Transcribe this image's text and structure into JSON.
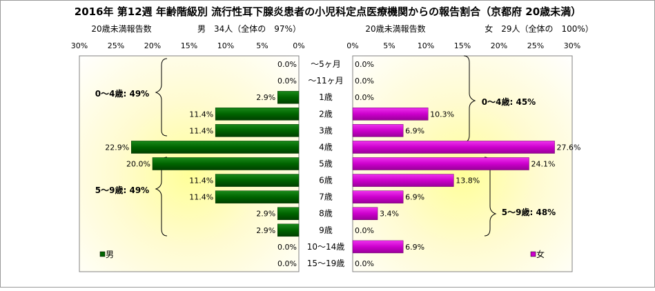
{
  "chart_data": {
    "type": "bar",
    "title": "2016年 第12週 年齢階級別 流行性耳下腺炎患者の小児科定点医療機関からの報告割合（京都府 20歳未満）",
    "left_subtitle": "20歳未満報告数",
    "left_count": "男　34人（全体の　97%）",
    "right_subtitle": "20歳未満報告数",
    "right_count": "女　29人（全体の　100%）",
    "xlim": [
      0,
      30
    ],
    "left_ticks": [
      "30%",
      "25%",
      "20%",
      "15%",
      "10%",
      "5%",
      "0%"
    ],
    "right_ticks": [
      "0%",
      "5%",
      "10%",
      "15%",
      "20%",
      "25%",
      "30%"
    ],
    "categories": [
      "〜5ヶ月",
      "〜11ヶ月",
      "1歳",
      "2歳",
      "3歳",
      "4歳",
      "5歳",
      "6歳",
      "7歳",
      "8歳",
      "9歳",
      "10〜14歳",
      "15〜19歳"
    ],
    "series": [
      {
        "name": "男",
        "color": "#006400",
        "values": [
          0.0,
          0.0,
          2.9,
          11.4,
          11.4,
          22.9,
          20.0,
          11.4,
          11.4,
          2.9,
          2.9,
          0.0,
          0.0
        ],
        "labels": [
          "0.0%",
          "0.0%",
          "2.9%",
          "11.4%",
          "11.4%",
          "22.9%",
          "20.0%",
          "11.4%",
          "11.4%",
          "2.9%",
          "2.9%",
          "0.0%",
          "0.0%"
        ]
      },
      {
        "name": "女",
        "color": "#cc00cc",
        "values": [
          0.0,
          0.0,
          0.0,
          10.3,
          6.9,
          27.6,
          24.1,
          13.8,
          6.9,
          3.4,
          0.0,
          6.9,
          0.0
        ],
        "labels": [
          "0.0%",
          "0.0%",
          "0.0%",
          "10.3%",
          "6.9%",
          "27.6%",
          "24.1%",
          "13.8%",
          "6.9%",
          "3.4%",
          "0.0%",
          "6.9%",
          "0.0%"
        ]
      }
    ],
    "annotations": {
      "male_0_4": "0〜4歳: 49%",
      "male_5_9": "5〜9歳: 49%",
      "female_0_4": "0〜4歳: 45%",
      "female_5_9": "5〜9歳: 48%"
    },
    "legend": {
      "male": "男",
      "female": "女"
    },
    "grid": false
  }
}
